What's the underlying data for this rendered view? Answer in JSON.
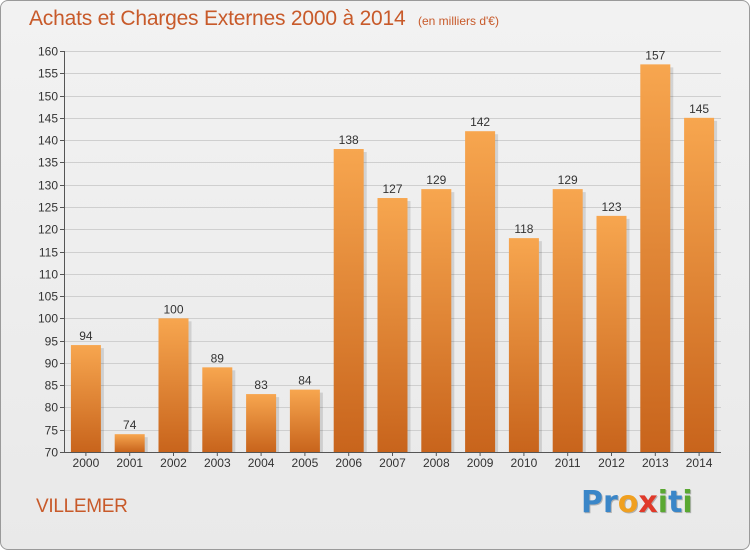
{
  "header": {
    "title": "Achats et Charges Externes 2000 à 2014",
    "unit_note": "(en milliers d'€)"
  },
  "footer": {
    "city": "VILLEMER",
    "logo_text": "Proxiti",
    "logo_letters": [
      {
        "ch": "P",
        "color": "#3a86c8"
      },
      {
        "ch": "r",
        "color": "#3a86c8"
      },
      {
        "ch": "o",
        "color": "#f0a020"
      },
      {
        "ch": "x",
        "color": "#e03a2a"
      },
      {
        "ch": "i",
        "color": "#5aa832"
      },
      {
        "ch": "t",
        "color": "#3a86c8"
      },
      {
        "ch": "i",
        "color": "#5aa832"
      }
    ]
  },
  "colors": {
    "bar_top": "#f7a64f",
    "bar_bottom": "#c8641c",
    "accent_text": "#c85a2a",
    "grid": "#cfcfcf"
  },
  "chart_data": {
    "type": "bar",
    "title": "Achats et Charges Externes 2000 à 2014",
    "subtitle": "(en milliers d'€)",
    "xlabel": "",
    "ylabel": "",
    "categories": [
      "2000",
      "2001",
      "2002",
      "2003",
      "2004",
      "2005",
      "2006",
      "2007",
      "2008",
      "2009",
      "2010",
      "2011",
      "2012",
      "2013",
      "2014"
    ],
    "values": [
      94,
      74,
      100,
      89,
      83,
      84,
      138,
      127,
      129,
      142,
      118,
      129,
      123,
      157,
      145
    ],
    "ylim": [
      70,
      160
    ],
    "yticks": [
      70,
      75,
      80,
      85,
      90,
      95,
      100,
      105,
      110,
      115,
      120,
      125,
      130,
      135,
      140,
      145,
      150,
      155,
      160
    ],
    "grid": true,
    "data_labels": true
  }
}
